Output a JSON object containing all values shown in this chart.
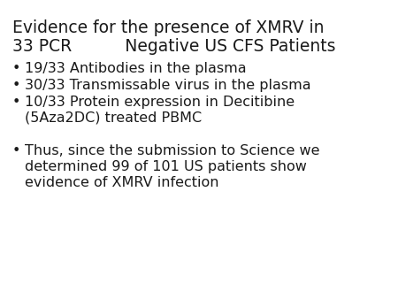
{
  "title_line1": "Evidence for the presence of XMRV in",
  "title_line2": "33 PCR          Negative US CFS Patients",
  "bullet1": "19/33 Antibodies in the plasma",
  "bullet2": "30/33 Transmissable virus in the plasma",
  "bullet3a": "10/33 Protein expression in Decitibine",
  "bullet3b": "(5Aza2DC) treated PBMC",
  "bullet4a": "Thus, since the submission to Science we",
  "bullet4b": "determined 99 of 101 US patients show",
  "bullet4c": "evidence of XMRV infection",
  "background_color": "#ffffff",
  "text_color": "#1a1a1a",
  "title_fontsize": 13.5,
  "bullet_fontsize": 11.5,
  "bullet_char": "•"
}
